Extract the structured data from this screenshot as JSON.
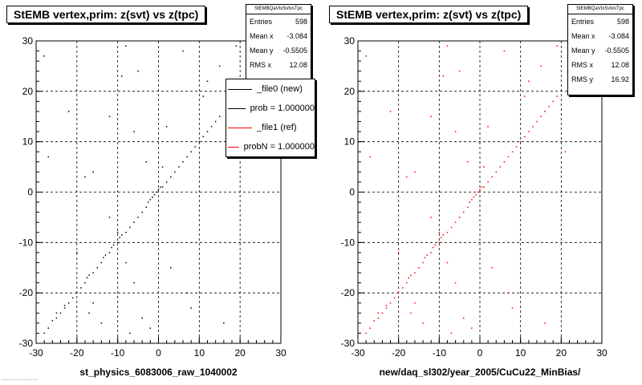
{
  "colors": {
    "left_points": "#000000",
    "right_points": "#ff0000",
    "grid": "#000000"
  },
  "footer_text": "...........................",
  "chart_data": [
    {
      "type": "scatter",
      "title": "StEMB  vertex,prim: z(svt) vs z(tpc)",
      "xlabel": "st_physics_6083006_raw_1040002",
      "ylabel": "",
      "xlim": [
        -30,
        30
      ],
      "ylim": [
        -30,
        30
      ],
      "xticks": [
        "-30",
        "-20",
        "-10",
        "0",
        "10",
        "20",
        "30"
      ],
      "yticks": [
        "-30",
        "-20",
        "-10",
        "0",
        "10",
        "20",
        "30"
      ],
      "grid": true,
      "point_color": "#000000",
      "stats": {
        "header": "StEMBQaVtxSvtvsTpc",
        "rows": [
          {
            "label": "Entries",
            "value": "598"
          },
          {
            "label": "Mean x",
            "value": "-3.084"
          },
          {
            "label": "Mean y",
            "value": "-0.5505"
          },
          {
            "label": "RMS x",
            "value": "12.08"
          }
        ]
      },
      "legend": [
        {
          "label": "_file0 (new)",
          "color": "#000000"
        },
        {
          "label": "prob = 1.000000",
          "color": "#000000"
        },
        {
          "label": "_file1 (ref)",
          "color": "#ff0000"
        },
        {
          "label": "probN = 1.000000",
          "color": "#ff0000"
        }
      ],
      "points": [
        [
          -28,
          -28
        ],
        [
          -27,
          -27
        ],
        [
          -26,
          -25.5
        ],
        [
          -25,
          -25
        ],
        [
          -24,
          -24
        ],
        [
          -23,
          -23
        ],
        [
          -22,
          -22
        ],
        [
          -21,
          -21
        ],
        [
          -20,
          -20
        ],
        [
          -19,
          -19
        ],
        [
          -18,
          -18
        ],
        [
          -17.5,
          -17
        ],
        [
          -17,
          -16.5
        ],
        [
          -16,
          -16
        ],
        [
          -15,
          -15
        ],
        [
          -14,
          -14
        ],
        [
          -13.5,
          -13
        ],
        [
          -13,
          -12.5
        ],
        [
          -12,
          -12
        ],
        [
          -11.5,
          -11
        ],
        [
          -11,
          -10.5
        ],
        [
          -10,
          -10
        ],
        [
          -9.5,
          -9
        ],
        [
          -9,
          -8.5
        ],
        [
          -8,
          -8
        ],
        [
          -7,
          -7
        ],
        [
          -6,
          -6
        ],
        [
          -5,
          -5
        ],
        [
          -4,
          -4
        ],
        [
          -3,
          -3
        ],
        [
          -2.5,
          -2
        ],
        [
          -2,
          -1.5
        ],
        [
          -1.5,
          -1
        ],
        [
          -1,
          -0.5
        ],
        [
          -0.5,
          0
        ],
        [
          0,
          0.5
        ],
        [
          0.5,
          1
        ],
        [
          1,
          1
        ],
        [
          2,
          2
        ],
        [
          3,
          3
        ],
        [
          4,
          4
        ],
        [
          5,
          5
        ],
        [
          6,
          6
        ],
        [
          7,
          7
        ],
        [
          8,
          8
        ],
        [
          9,
          9
        ],
        [
          10,
          10
        ],
        [
          11,
          11
        ],
        [
          12,
          12
        ],
        [
          13,
          13
        ],
        [
          14,
          14
        ],
        [
          15,
          15
        ],
        [
          -27,
          7
        ],
        [
          -25,
          -24
        ],
        [
          -23,
          -22.5
        ],
        [
          -17,
          -24
        ],
        [
          -16,
          -22
        ],
        [
          -16,
          4
        ],
        [
          -14,
          -26
        ],
        [
          -12,
          -5
        ],
        [
          -10,
          -8
        ],
        [
          -9,
          23
        ],
        [
          -8,
          29
        ],
        [
          -7,
          -28
        ],
        [
          -6,
          -18
        ],
        [
          -5,
          24
        ],
        [
          -4,
          -25
        ],
        [
          -3,
          6
        ],
        [
          -2,
          -27
        ],
        [
          1,
          5
        ],
        [
          2,
          13
        ],
        [
          6,
          28
        ],
        [
          8,
          -23
        ],
        [
          11,
          19
        ],
        [
          12,
          22
        ],
        [
          16,
          -26
        ],
        [
          19,
          29
        ],
        [
          21,
          8
        ],
        [
          -20,
          -12
        ],
        [
          -18,
          3
        ],
        [
          -22,
          16
        ],
        [
          -8,
          -14
        ],
        [
          -12,
          15
        ],
        [
          3,
          -15
        ],
        [
          7,
          -20
        ],
        [
          15,
          25
        ],
        [
          -28,
          27
        ],
        [
          -6,
          12
        ]
      ]
    },
    {
      "type": "scatter",
      "title": "StEMB  vertex,prim: z(svt) vs z(tpc)",
      "xlabel": "new/daq_sl302/year_2005/CuCu22_MinBias/",
      "ylabel": "",
      "xlim": [
        -30,
        30
      ],
      "ylim": [
        -30,
        30
      ],
      "xticks": [
        "-30",
        "-20",
        "-10",
        "0",
        "10",
        "20",
        "30"
      ],
      "yticks": [
        "-30",
        "-20",
        "-10",
        "0",
        "10",
        "20",
        "30"
      ],
      "grid": true,
      "point_color": "#ff0000",
      "stats": {
        "header": "StEMBQaVtxSvtvsTpc",
        "rows": [
          {
            "label": "Entries",
            "value": "598"
          },
          {
            "label": "Mean x",
            "value": "-3.084"
          },
          {
            "label": "Mean y",
            "value": "-0.5505"
          },
          {
            "label": "RMS x",
            "value": "12.08"
          },
          {
            "label": "RMS y",
            "value": "16.92"
          }
        ]
      },
      "legend": [],
      "points": [
        [
          -28,
          -28
        ],
        [
          -27,
          -27
        ],
        [
          -26,
          -25.5
        ],
        [
          -25,
          -25
        ],
        [
          -24,
          -24
        ],
        [
          -23,
          -23
        ],
        [
          -22,
          -22
        ],
        [
          -21,
          -21
        ],
        [
          -20,
          -20
        ],
        [
          -19,
          -19
        ],
        [
          -18,
          -18
        ],
        [
          -17.5,
          -17
        ],
        [
          -17,
          -16.5
        ],
        [
          -16,
          -16
        ],
        [
          -15,
          -15
        ],
        [
          -14,
          -14
        ],
        [
          -13.5,
          -13
        ],
        [
          -13,
          -12.5
        ],
        [
          -12,
          -12
        ],
        [
          -11.5,
          -11
        ],
        [
          -11,
          -10.5
        ],
        [
          -10,
          -10
        ],
        [
          -9.5,
          -9
        ],
        [
          -9,
          -8.5
        ],
        [
          -8,
          -8
        ],
        [
          -7,
          -7
        ],
        [
          -6,
          -6
        ],
        [
          -5,
          -5
        ],
        [
          -4,
          -4
        ],
        [
          -3,
          -3
        ],
        [
          -2.5,
          -2
        ],
        [
          -2,
          -1.5
        ],
        [
          -1.5,
          -1
        ],
        [
          -1,
          -0.5
        ],
        [
          -0.5,
          0
        ],
        [
          0,
          0.5
        ],
        [
          0.5,
          1
        ],
        [
          1,
          1
        ],
        [
          2,
          2
        ],
        [
          3,
          3
        ],
        [
          4,
          4
        ],
        [
          5,
          5
        ],
        [
          6,
          6
        ],
        [
          7,
          7
        ],
        [
          8,
          8
        ],
        [
          9,
          9
        ],
        [
          10,
          10
        ],
        [
          11,
          11
        ],
        [
          12,
          12
        ],
        [
          13,
          13
        ],
        [
          14,
          14
        ],
        [
          15,
          15
        ],
        [
          16,
          16
        ],
        [
          17,
          17
        ],
        [
          18,
          18
        ],
        [
          19,
          19
        ],
        [
          -27,
          7
        ],
        [
          -25,
          -24
        ],
        [
          -23,
          -22.5
        ],
        [
          -17,
          -24
        ],
        [
          -16,
          -22
        ],
        [
          -16,
          4
        ],
        [
          -14,
          -26
        ],
        [
          -12,
          -5
        ],
        [
          -10,
          -8
        ],
        [
          -9,
          23
        ],
        [
          -8,
          29
        ],
        [
          -7,
          -28
        ],
        [
          -6,
          -18
        ],
        [
          -5,
          24
        ],
        [
          -4,
          -25
        ],
        [
          -3,
          6
        ],
        [
          -2,
          -27
        ],
        [
          1,
          5
        ],
        [
          2,
          13
        ],
        [
          6,
          28
        ],
        [
          8,
          -23
        ],
        [
          11,
          19
        ],
        [
          12,
          22
        ],
        [
          16,
          -26
        ],
        [
          19,
          29
        ],
        [
          21,
          8
        ],
        [
          -20,
          -12
        ],
        [
          -18,
          3
        ],
        [
          -22,
          16
        ],
        [
          -8,
          -14
        ],
        [
          -12,
          15
        ],
        [
          3,
          -15
        ],
        [
          7,
          -20
        ],
        [
          15,
          25
        ],
        [
          -28,
          27
        ],
        [
          -6,
          12
        ]
      ]
    }
  ]
}
